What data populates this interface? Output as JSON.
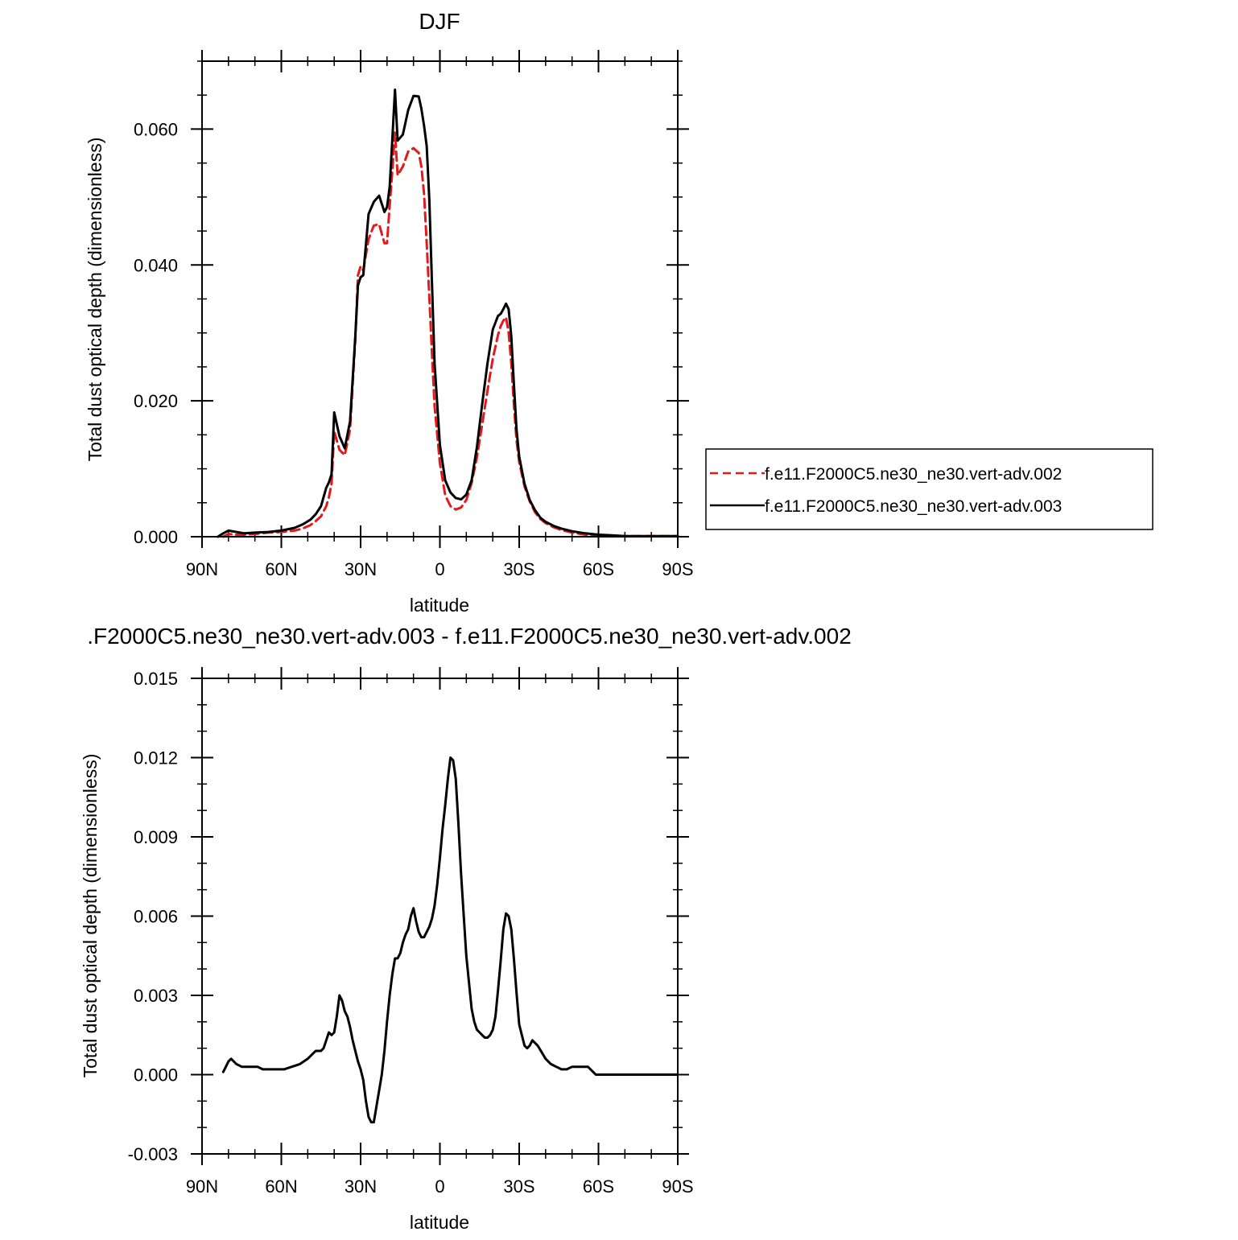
{
  "chart_data": [
    {
      "type": "line",
      "title": "DJF",
      "xlabel": "latitude",
      "ylabel": "Total dust optical depth (dimensionless)",
      "xlim": [
        90,
        -90
      ],
      "ylim": [
        0,
        0.07
      ],
      "x_ticks": [
        90,
        60,
        30,
        0,
        -30,
        -60,
        -90
      ],
      "x_tick_labels": [
        "90N",
        "60N",
        "30N",
        "0",
        "30S",
        "60S",
        "90S"
      ],
      "y_ticks": [
        0,
        0.02,
        0.04,
        0.06
      ],
      "y_tick_labels": [
        "0.000",
        "0.020",
        "0.040",
        "0.060"
      ],
      "grid": false,
      "legend_position": "right",
      "series": [
        {
          "name": "f.e11.F2000C5.ne30_ne30.vert-adv.002",
          "color": "#e31a1c",
          "dash": "dashed",
          "x": [
            82,
            80,
            77,
            74,
            70,
            65,
            60,
            55,
            52,
            49,
            47,
            45,
            43,
            42,
            41,
            40,
            38,
            36,
            34,
            32,
            31,
            30,
            29,
            27,
            25,
            23,
            21,
            20,
            19,
            18,
            17,
            16,
            14,
            12,
            10,
            8,
            7,
            6,
            5,
            4,
            3,
            2,
            0,
            -2,
            -4,
            -6,
            -8,
            -10,
            -12,
            -14,
            -16,
            -18,
            -20,
            -22,
            -23,
            -24,
            -25,
            -26,
            -27,
            -28,
            -29,
            -30,
            -32,
            -34,
            -36,
            -38,
            -40,
            -43,
            -46,
            -50,
            -55,
            -60,
            -65,
            -70,
            -75,
            -80,
            -85,
            -90
          ],
          "values": [
            0,
            0.0004,
            0.0003,
            0.0003,
            0.0004,
            0.0006,
            0.0007,
            0.0009,
            0.0012,
            0.0017,
            0.0023,
            0.003,
            0.0045,
            0.0058,
            0.0078,
            0.0155,
            0.0128,
            0.012,
            0.0158,
            0.029,
            0.0385,
            0.0398,
            0.0392,
            0.0438,
            0.0458,
            0.046,
            0.0432,
            0.0432,
            0.0487,
            0.0538,
            0.0595,
            0.0532,
            0.0545,
            0.0567,
            0.0572,
            0.0565,
            0.0545,
            0.0505,
            0.0432,
            0.0352,
            0.027,
            0.0192,
            0.0108,
            0.0061,
            0.0045,
            0.004,
            0.0043,
            0.0054,
            0.0079,
            0.0117,
            0.0165,
            0.0215,
            0.0262,
            0.0297,
            0.031,
            0.0318,
            0.0323,
            0.03,
            0.0255,
            0.0195,
            0.0142,
            0.011,
            0.0074,
            0.0052,
            0.0036,
            0.0026,
            0.002,
            0.0014,
            0.001,
            0.0006,
            0.0003,
            0.0002,
            0.0001,
            0.0001,
            0.0001,
            0.0001,
            0.0001,
            0.0001
          ]
        },
        {
          "name": "f.e11.F2000C5.ne30_ne30.vert-adv.003",
          "color": "#000000",
          "dash": "solid",
          "x": [
            84,
            82,
            80,
            77,
            74,
            70,
            65,
            60,
            55,
            52,
            49,
            47,
            45,
            43,
            42,
            41,
            40,
            38,
            36,
            34,
            32,
            31,
            30,
            29,
            27,
            25,
            23,
            21,
            20,
            19,
            18,
            17,
            16,
            14,
            12,
            10,
            8,
            7,
            6,
            5,
            4,
            3,
            2,
            0,
            -2,
            -4,
            -6,
            -8,
            -10,
            -12,
            -14,
            -16,
            -18,
            -20,
            -22,
            -23,
            -24,
            -25,
            -26,
            -27,
            -28,
            -29,
            -30,
            -32,
            -34,
            -36,
            -38,
            -40,
            -43,
            -46,
            -50,
            -55,
            -60,
            -65,
            -70,
            -75,
            -80,
            -85,
            -90
          ],
          "values": [
            0,
            0.0005,
            0.0009,
            0.0007,
            0.0005,
            0.0006,
            0.0007,
            0.0009,
            0.0013,
            0.0018,
            0.0025,
            0.0033,
            0.0045,
            0.0072,
            0.008,
            0.0092,
            0.0183,
            0.0148,
            0.013,
            0.017,
            0.0295,
            0.037,
            0.0382,
            0.0385,
            0.0475,
            0.0493,
            0.0502,
            0.0478,
            0.0485,
            0.0515,
            0.0585,
            0.0658,
            0.0583,
            0.0592,
            0.0628,
            0.0649,
            0.0648,
            0.063,
            0.0605,
            0.0575,
            0.0495,
            0.0375,
            0.0255,
            0.0135,
            0.0083,
            0.0065,
            0.0057,
            0.0055,
            0.0062,
            0.0083,
            0.0132,
            0.0195,
            0.0255,
            0.0305,
            0.0325,
            0.0328,
            0.0335,
            0.0343,
            0.0335,
            0.0295,
            0.0225,
            0.0158,
            0.0118,
            0.0078,
            0.0054,
            0.0039,
            0.0028,
            0.0022,
            0.0016,
            0.0012,
            0.0008,
            0.0005,
            0.0003,
            0.0002,
            0.0001,
            0.0001,
            0.0001,
            0.0001,
            0.0001
          ]
        }
      ]
    },
    {
      "type": "line",
      "title": ".F2000C5.ne30_ne30.vert-adv.003 - f.e11.F2000C5.ne30_ne30.vert-adv.002",
      "xlabel": "latitude",
      "ylabel": "Total dust optical depth (dimensionless)",
      "xlim": [
        90,
        -90
      ],
      "ylim": [
        -0.003,
        0.015
      ],
      "x_ticks": [
        90,
        60,
        30,
        0,
        -30,
        -60,
        -90
      ],
      "x_tick_labels": [
        "90N",
        "60N",
        "30N",
        "0",
        "30S",
        "60S",
        "90S"
      ],
      "y_ticks": [
        -0.003,
        0,
        0.003,
        0.006,
        0.009,
        0.012,
        0.015
      ],
      "y_tick_labels": [
        "-0.003",
        "0.000",
        "0.003",
        "0.006",
        "0.009",
        "0.012",
        "0.015"
      ],
      "grid": false,
      "series": [
        {
          "color": "#000000",
          "dash": "solid",
          "x": [
            82,
            81,
            80,
            79,
            78,
            77,
            75,
            73,
            71,
            69,
            67,
            65,
            62,
            59,
            56,
            53,
            50,
            48,
            47,
            46,
            45,
            44,
            43,
            42,
            41,
            40,
            39,
            38,
            37,
            36,
            35,
            34,
            33,
            32,
            31,
            30,
            29,
            28,
            27,
            26,
            25,
            24,
            23,
            22,
            21,
            20,
            19,
            18,
            17,
            16,
            15,
            14,
            13,
            12,
            11,
            10,
            9,
            8,
            7,
            6,
            5,
            4,
            3,
            2,
            1,
            0,
            -1,
            -2,
            -3,
            -4,
            -5,
            -6,
            -7,
            -8,
            -10,
            -12,
            -13,
            -14,
            -15,
            -16,
            -17,
            -18,
            -19,
            -20,
            -21,
            -22,
            -23,
            -24,
            -25,
            -26,
            -27,
            -28,
            -29,
            -30,
            -31,
            -32,
            -33,
            -34,
            -35,
            -37,
            -40,
            -42,
            -44,
            -46,
            -48,
            -50,
            -52,
            -54,
            -55,
            -56,
            -57,
            -58,
            -59,
            -60,
            -62,
            -65,
            -70,
            -75,
            -80,
            -85,
            -90
          ],
          "values": [
            0.0001,
            0.0003,
            0.0005,
            0.0006,
            0.0005,
            0.0004,
            0.0003,
            0.0003,
            0.0003,
            0.0003,
            0.0002,
            0.0002,
            0.0002,
            0.0002,
            0.0003,
            0.0004,
            0.0006,
            0.0008,
            0.0009,
            0.0009,
            0.0009,
            0.001,
            0.0013,
            0.0016,
            0.0015,
            0.0016,
            0.0022,
            0.003,
            0.0028,
            0.0024,
            0.0022,
            0.0018,
            0.0013,
            0.0009,
            0.0005,
            0.0002,
            -0.0002,
            -0.001,
            -0.0016,
            -0.0018,
            -0.0018,
            -0.0012,
            -0.0006,
            0.0,
            0.0009,
            0.002,
            0.003,
            0.0038,
            0.0044,
            0.0044,
            0.0046,
            0.005,
            0.0053,
            0.0055,
            0.006,
            0.0063,
            0.0058,
            0.0054,
            0.0052,
            0.0052,
            0.0054,
            0.0056,
            0.0059,
            0.0064,
            0.0072,
            0.0082,
            0.0093,
            0.0102,
            0.0112,
            0.012,
            0.0119,
            0.0112,
            0.0095,
            0.0076,
            0.0045,
            0.0025,
            0.002,
            0.0017,
            0.0016,
            0.0015,
            0.0014,
            0.0014,
            0.0015,
            0.0017,
            0.0022,
            0.0032,
            0.0043,
            0.0055,
            0.0061,
            0.006,
            0.0055,
            0.0044,
            0.0031,
            0.0019,
            0.0015,
            0.0011,
            0.001,
            0.0011,
            0.0013,
            0.0011,
            0.0006,
            0.0004,
            0.0003,
            0.0002,
            0.0002,
            0.0003,
            0.0003,
            0.0003,
            0.0003,
            0.0003,
            0.0002,
            0.0001,
            0.0,
            0.0,
            0.0,
            0.0,
            0.0,
            0.0,
            0.0,
            0.0,
            0.0
          ]
        }
      ]
    }
  ]
}
